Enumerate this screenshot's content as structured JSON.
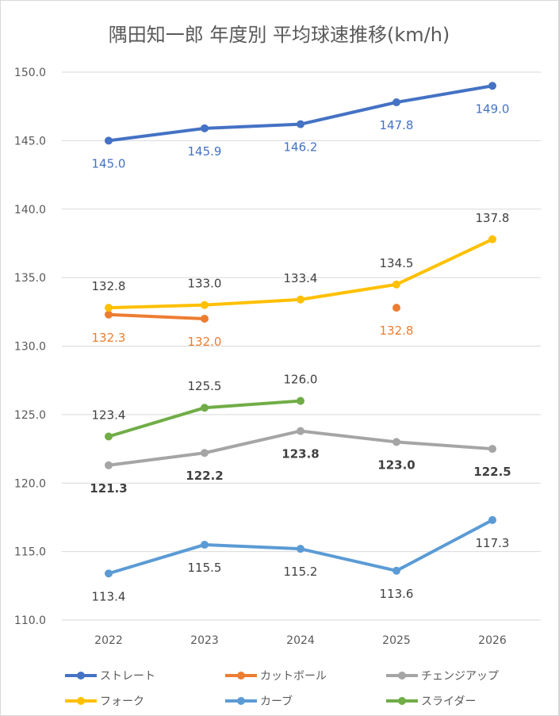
{
  "chart_data": {
    "type": "line",
    "title": "隅田知一郎 年度別 平均球速推移(km/h)",
    "xlabel": "",
    "ylabel": "",
    "categories": [
      "2022",
      "2023",
      "2024",
      "2025",
      "2026"
    ],
    "ylim": [
      110,
      150
    ],
    "yticks": [
      "110.0",
      "115.0",
      "120.0",
      "125.0",
      "130.0",
      "135.0",
      "140.0",
      "145.0",
      "150.0"
    ],
    "grid": true,
    "legend_position": "bottom",
    "series": [
      {
        "name": "ストレート",
        "color": "#4472C4",
        "values": [
          145.0,
          145.9,
          146.2,
          147.8,
          149.0
        ],
        "labels": [
          "145.0",
          "145.9",
          "146.2",
          "147.8",
          "149.0"
        ],
        "label_pos": "below",
        "label_color": "#4472C4",
        "bold": false
      },
      {
        "name": "カットボール",
        "color": "#ED7D31",
        "values": [
          132.3,
          132.0,
          null,
          132.8,
          null
        ],
        "labels": [
          "132.3",
          "132.0",
          null,
          "132.8",
          null
        ],
        "label_pos": "below",
        "label_color": "#ED7D31",
        "bold": false
      },
      {
        "name": "チェンジアップ",
        "color": "#A5A5A5",
        "values": [
          121.3,
          122.2,
          123.8,
          123.0,
          122.5
        ],
        "labels": [
          "121.3",
          "122.2",
          "123.8",
          "123.0",
          "122.5"
        ],
        "label_pos": "below",
        "label_color": "#404040",
        "bold": true
      },
      {
        "name": "フォーク",
        "color": "#FFC000",
        "values": [
          132.8,
          133.0,
          133.4,
          134.5,
          137.8
        ],
        "labels": [
          "132.8",
          "133.0",
          "133.4",
          "134.5",
          "137.8"
        ],
        "label_pos": "above",
        "label_color": "#404040",
        "bold": false
      },
      {
        "name": "カーブ",
        "color": "#5B9BD5",
        "values": [
          113.4,
          115.5,
          115.2,
          113.6,
          117.3
        ],
        "labels": [
          "113.4",
          "115.5",
          "115.2",
          "113.6",
          "117.3"
        ],
        "label_pos": "below",
        "label_color": "#404040",
        "bold": false
      },
      {
        "name": "スライダー",
        "color": "#70AD47",
        "values": [
          123.4,
          125.5,
          126.0,
          null,
          null
        ],
        "labels": [
          "123.4",
          "125.5",
          "126.0",
          null,
          null
        ],
        "label_pos": "above",
        "label_color": "#404040",
        "bold": false
      }
    ]
  }
}
